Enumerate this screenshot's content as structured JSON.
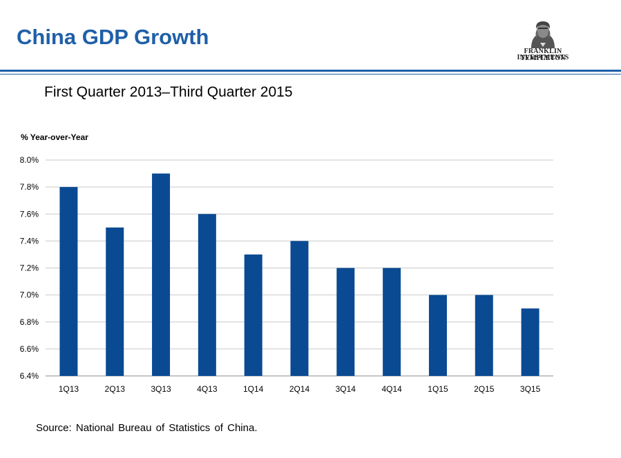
{
  "header": {
    "title": "China GDP Growth",
    "logo_line1": "FRANKLIN TEMPLETON",
    "logo_line2": "INVESTMENTS"
  },
  "colors": {
    "title": "#1f5fa8",
    "rule": "#1f5fa8",
    "bar": "#0a4a93",
    "grid": "#c8c8c8"
  },
  "chart_data": {
    "type": "bar",
    "title": "First Quarter 2013–Third Quarter 2015",
    "ylabel": "% Year-over-Year",
    "xlabel": "",
    "categories": [
      "1Q13",
      "2Q13",
      "3Q13",
      "4Q13",
      "1Q14",
      "2Q14",
      "3Q14",
      "4Q14",
      "1Q15",
      "2Q15",
      "3Q15"
    ],
    "values": [
      7.8,
      7.5,
      7.9,
      7.6,
      7.3,
      7.4,
      7.2,
      7.2,
      7.0,
      7.0,
      6.9
    ],
    "ylim": [
      6.4,
      8.0
    ],
    "yticks": [
      "6.4%",
      "6.6%",
      "6.8%",
      "7.0%",
      "7.2%",
      "7.4%",
      "7.6%",
      "7.8%",
      "8.0%"
    ],
    "grid": true,
    "legend": "none"
  },
  "footer": {
    "source": "Source: National Bureau of Statistics of China."
  }
}
